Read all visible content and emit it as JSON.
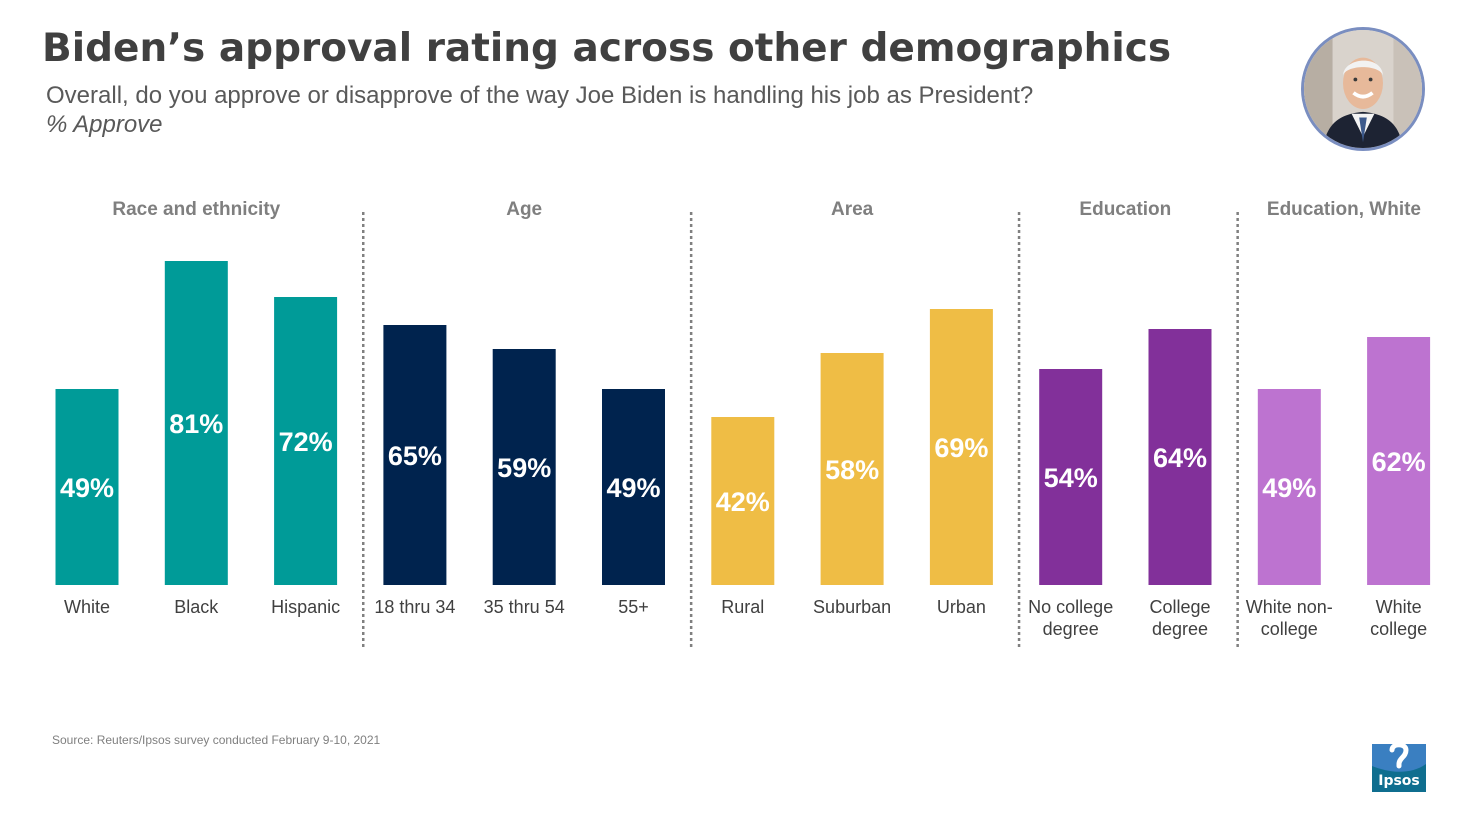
{
  "header": {
    "title": "Biden’s approval rating across other demographics",
    "subtitle": "Overall, do you approve or disapprove of the way Joe Biden is handling his job as President?",
    "measure": "% Approve"
  },
  "portrait": {
    "icon": "person-portrait-icon"
  },
  "footer": {
    "source": "Source: Reuters/Ipsos survey conducted February 9-10, 2021",
    "logo_text": "Ipsos"
  },
  "colors": {
    "teal": "#009b98",
    "navy": "#00234e",
    "gold": "#efbd45",
    "purple": "#82309a",
    "lavender": "#bd73d0",
    "group_label": "#7f7f7f",
    "category_label": "#404040",
    "value_label": "#ffffff",
    "divider": "#808080",
    "logo_bg": "#0f6e8f"
  },
  "chart_data": {
    "type": "bar",
    "title": "Biden’s approval rating across other demographics",
    "ylabel": "% Approve",
    "ylim": [
      0,
      100
    ],
    "grid": false,
    "groups": [
      {
        "name": "Race and ethnicity",
        "color": "#009b98",
        "bars": [
          {
            "label": "White",
            "value": 49
          },
          {
            "label": "Black",
            "value": 81
          },
          {
            "label": "Hispanic",
            "value": 72
          }
        ]
      },
      {
        "name": "Age",
        "color": "#00234e",
        "bars": [
          {
            "label": "18 thru 34",
            "value": 65
          },
          {
            "label": "35 thru 54",
            "value": 59
          },
          {
            "label": "55+",
            "value": 49
          }
        ]
      },
      {
        "name": "Area",
        "color": "#efbd45",
        "bars": [
          {
            "label": "Rural",
            "value": 42
          },
          {
            "label": "Suburban",
            "value": 58
          },
          {
            "label": "Urban",
            "value": 69
          }
        ]
      },
      {
        "name": "Education",
        "color": "#82309a",
        "bars": [
          {
            "label": "No college\ndegree",
            "value": 54
          },
          {
            "label": "College\ndegree",
            "value": 64
          }
        ]
      },
      {
        "name": "Education, White",
        "color": "#bd73d0",
        "bars": [
          {
            "label": "White non-\ncollege",
            "value": 49
          },
          {
            "label": "White\ncollege",
            "value": 62
          }
        ]
      }
    ]
  }
}
